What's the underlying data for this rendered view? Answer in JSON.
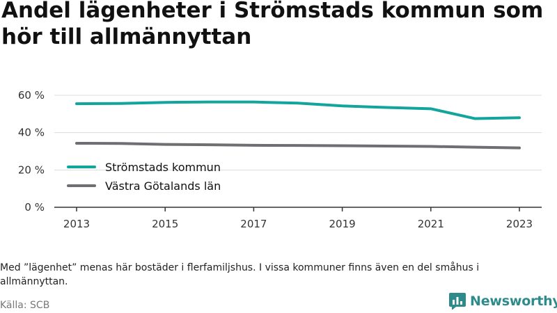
{
  "title": "Andel lägenheter i Strömstads kommun som hör till allmännyttan",
  "note": "Med ”lägenhet” menas här bostäder i flerfamiljshus. I vissa kommuner finns även en del småhus i allmännyttan.",
  "source": "Källa: SCB",
  "brand": {
    "name": "Newsworthy",
    "color": "#2e8b8b",
    "icon": "bar-chart-logo-icon"
  },
  "colors": {
    "series1": "#12a59b",
    "series2": "#6e6e73",
    "grid": "#dcdcdc",
    "axis": "#333333"
  },
  "chart_data": {
    "type": "line",
    "title": "Andel lägenheter i Strömstads kommun som hör till allmännyttan",
    "x": [
      2013,
      2014,
      2015,
      2016,
      2017,
      2018,
      2019,
      2020,
      2021,
      2022,
      2023
    ],
    "x_ticks": [
      "2013",
      "2015",
      "2017",
      "2019",
      "2021",
      "2023"
    ],
    "y_ticks": [
      "0 %",
      "20 %",
      "40 %",
      "60 %"
    ],
    "ylim": [
      0,
      60
    ],
    "grid": true,
    "legend_position": "bottom-left",
    "series": [
      {
        "name": "Strömstads kommun",
        "values": [
          55.5,
          55.6,
          56.2,
          56.4,
          56.4,
          55.8,
          54.3,
          53.5,
          52.8,
          47.5,
          48.0
        ]
      },
      {
        "name": "Västra Götalands län",
        "values": [
          34.3,
          34.2,
          33.7,
          33.5,
          33.2,
          33.1,
          33.0,
          32.8,
          32.6,
          32.2,
          31.8
        ]
      }
    ]
  }
}
